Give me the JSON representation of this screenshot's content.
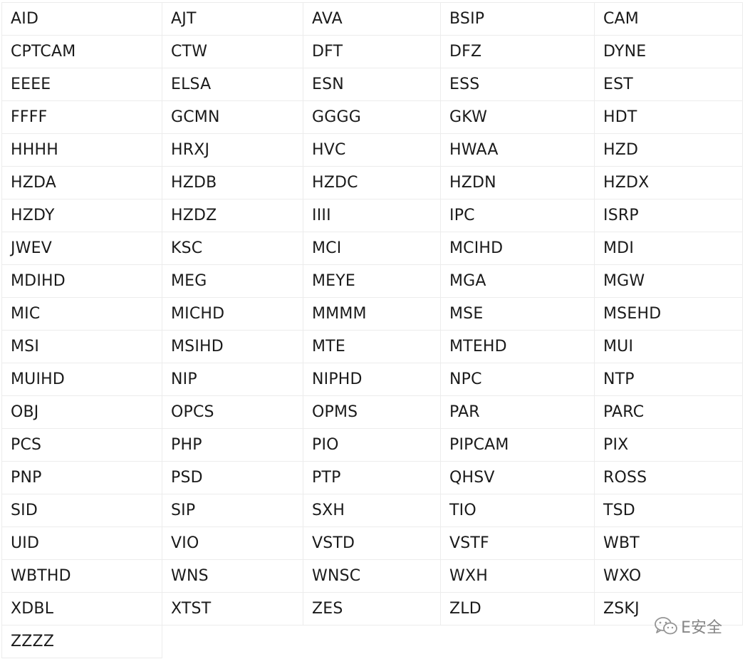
{
  "rows": [
    [
      "AID",
      "AJT",
      "AVA",
      "BSIP",
      "CAM"
    ],
    [
      "CPTCAM",
      "CTW",
      "DFT",
      "DFZ",
      "DYNE"
    ],
    [
      "EEEE",
      "ELSA",
      "ESN",
      "ESS",
      "EST"
    ],
    [
      "FFFF",
      "GCMN",
      "GGGG",
      "GKW",
      "HDT"
    ],
    [
      "HHHH",
      "HRXJ",
      "HVC",
      "HWAA",
      "HZD"
    ],
    [
      "HZDA",
      "HZDB",
      "HZDC",
      "HZDN",
      "HZDX"
    ],
    [
      "HZDY",
      "HZDZ",
      "IIII",
      "IPC",
      "ISRP"
    ],
    [
      "JWEV",
      "KSC",
      "MCI",
      "MCIHD",
      "MDI"
    ],
    [
      "MDIHD",
      "MEG",
      "MEYE",
      "MGA",
      "MGW"
    ],
    [
      "MIC",
      "MICHD",
      "MMMM",
      "MSE",
      "MSEHD"
    ],
    [
      "MSI",
      "MSIHD",
      "MTE",
      "MTEHD",
      "MUI"
    ],
    [
      "MUIHD",
      "NIP",
      "NIPHD",
      "NPC",
      "NTP"
    ],
    [
      "OBJ",
      "OPCS",
      "OPMS",
      "PAR",
      "PARC"
    ],
    [
      "PCS",
      "PHP",
      "PIO",
      "PIPCAM",
      "PIX"
    ],
    [
      "PNP",
      "PSD",
      "PTP",
      "QHSV",
      "ROSS"
    ],
    [
      "SID",
      "SIP",
      "SXH",
      "TIO",
      "TSD"
    ],
    [
      "UID",
      "VIO",
      "VSTD",
      "VSTF",
      "WBT"
    ],
    [
      "WBTHD",
      "WNS",
      "WNSC",
      "WXH",
      "WXO"
    ],
    [
      "XDBL",
      "XTST",
      "ZES",
      "ZLD",
      "ZSKJ"
    ],
    [
      "ZZZZ"
    ]
  ],
  "watermark": {
    "icon": "wechat-icon",
    "text": "E安全"
  }
}
